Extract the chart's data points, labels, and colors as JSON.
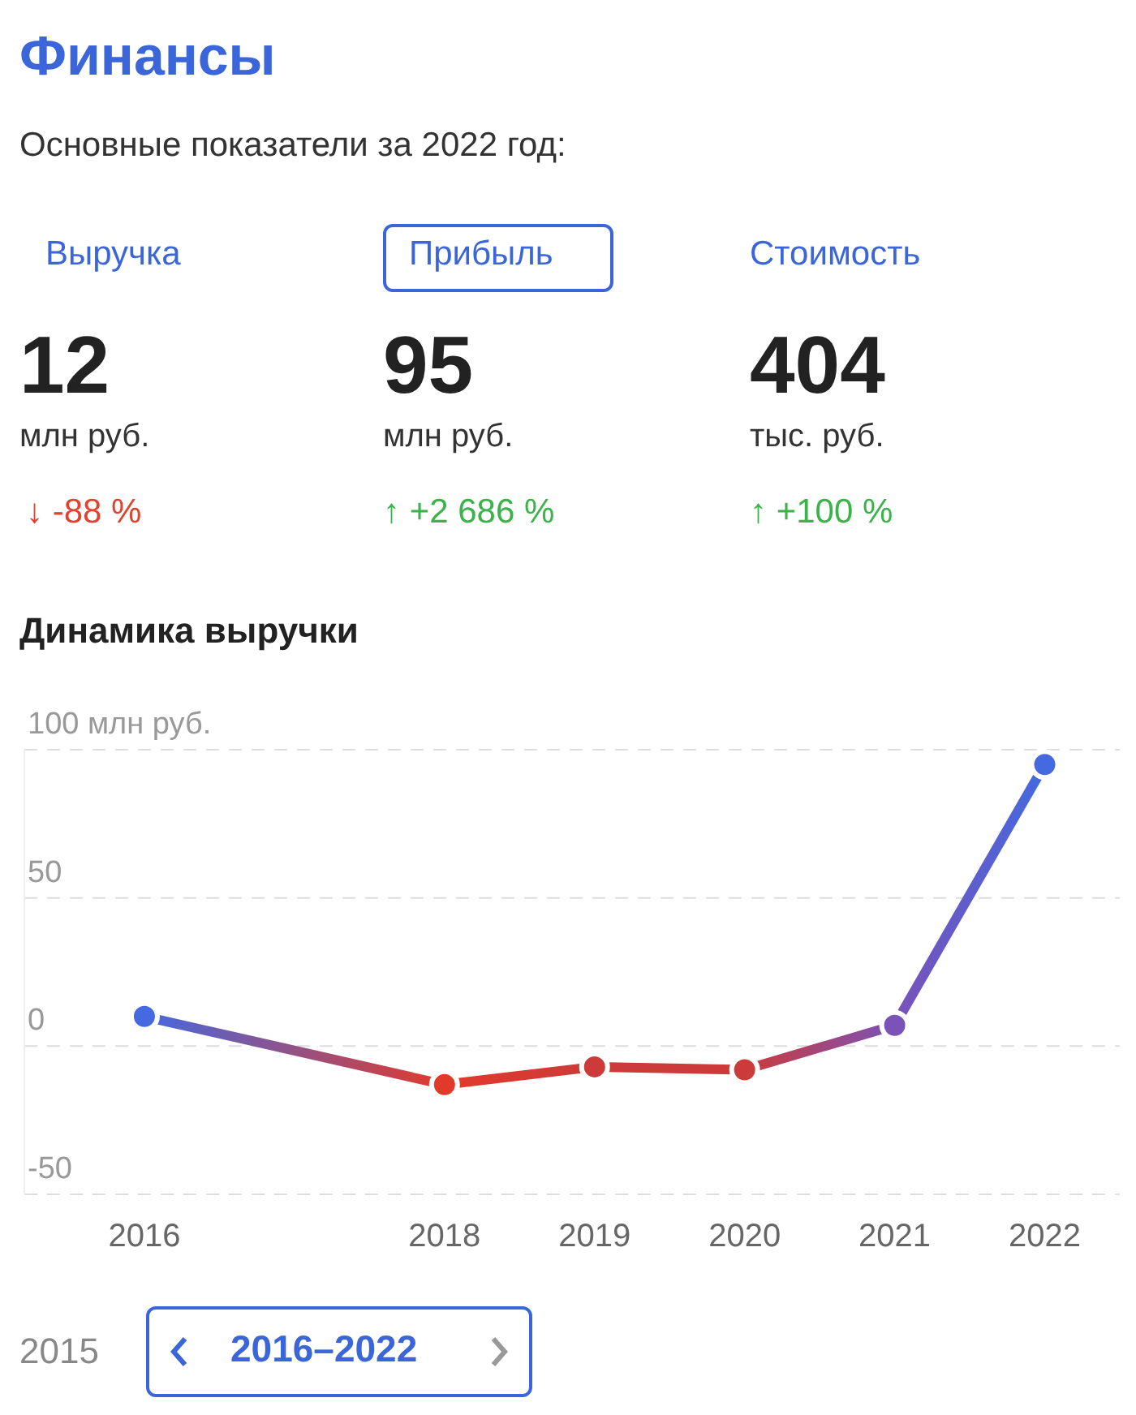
{
  "chart_data": [
    {
      "type": "other",
      "title": "Финансы",
      "subtitle": "Основные показатели за 2022 год:",
      "colors": [
        "#e2412f",
        "#3bb24a",
        "#3bb24a"
      ],
      "annotations": [
        "Выручка",
        "12",
        "млн руб.",
        "↓ -88 %",
        "Прибыль",
        "95",
        "млн руб.",
        "↑ +2 686 %",
        "Стоимость",
        "404",
        "тыс. руб.",
        "↑ +100 %"
      ]
    },
    {
      "type": "line",
      "title": "Динамика выручки",
      "x": [
        2016,
        2018,
        2019,
        2020,
        2021,
        2022
      ],
      "series": [
        {
          "colors": [
            "#4469e0",
            "#e23a2a",
            "#cc3a3a",
            "#cc3a3a",
            "#7a52b8",
            "#4469e0"
          ],
          "values": [
            10,
            -13,
            -7,
            -8,
            7,
            95
          ]
        }
      ],
      "xlim": [
        2015.2,
        2022.5
      ],
      "xticks": [
        2016,
        2018,
        2019,
        2020,
        2021,
        2022
      ],
      "ylim": [
        -50,
        100
      ],
      "yticks": [
        {
          "value": 100,
          "label": "100 млн руб."
        },
        50,
        0,
        -50
      ],
      "grid": "y",
      "marker": "circle",
      "line_style": "solid",
      "annotations": [
        "2015",
        "2016–2022"
      ]
    }
  ]
}
